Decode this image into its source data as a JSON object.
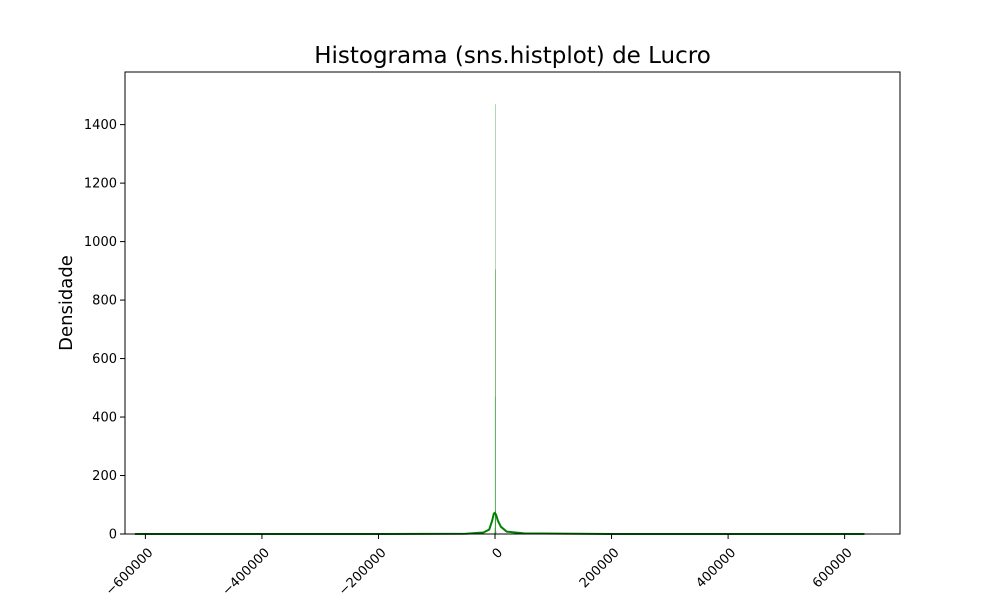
{
  "chart_data": {
    "type": "histogram",
    "title": "Histograma (sns.histplot) de Lucro",
    "xlabel": "",
    "ylabel": "Densidade",
    "xlim": [
      -635000,
      695000
    ],
    "ylim": [
      0,
      1580
    ],
    "x_ticks": [
      -600000,
      -400000,
      -200000,
      0,
      200000,
      400000,
      600000
    ],
    "x_tick_labels": [
      "−600000",
      "−400000",
      "−200000",
      "0",
      "200000",
      "400000",
      "600000"
    ],
    "y_ticks": [
      0,
      200,
      400,
      600,
      800,
      1000,
      1200,
      1400
    ],
    "y_tick_labels": [
      "0",
      "200",
      "400",
      "600",
      "800",
      "1000",
      "1200",
      "1400"
    ],
    "grid": false,
    "colors": {
      "hist": "#008000",
      "kde": "#008000"
    },
    "bins": [
      {
        "x0": -1200,
        "x1": -700,
        "count": 5
      },
      {
        "x0": -700,
        "x1": -300,
        "count": 20
      },
      {
        "x0": -300,
        "x1": 0,
        "count": 470
      },
      {
        "x0": 0,
        "x1": 300,
        "count": 1470
      },
      {
        "x0": 300,
        "x1": 700,
        "count": 905
      },
      {
        "x0": 700,
        "x1": 1200,
        "count": 80
      },
      {
        "x0": 1200,
        "x1": 2000,
        "count": 10
      }
    ],
    "kde": {
      "x": [
        -618000,
        -200000,
        -50000,
        -20000,
        -10000,
        -5000,
        -2000,
        0,
        2000,
        5000,
        10000,
        20000,
        50000,
        200000,
        634000
      ],
      "y": [
        0,
        0,
        1,
        5,
        15,
        45,
        70,
        72,
        65,
        45,
        25,
        8,
        2,
        0,
        0
      ]
    }
  }
}
